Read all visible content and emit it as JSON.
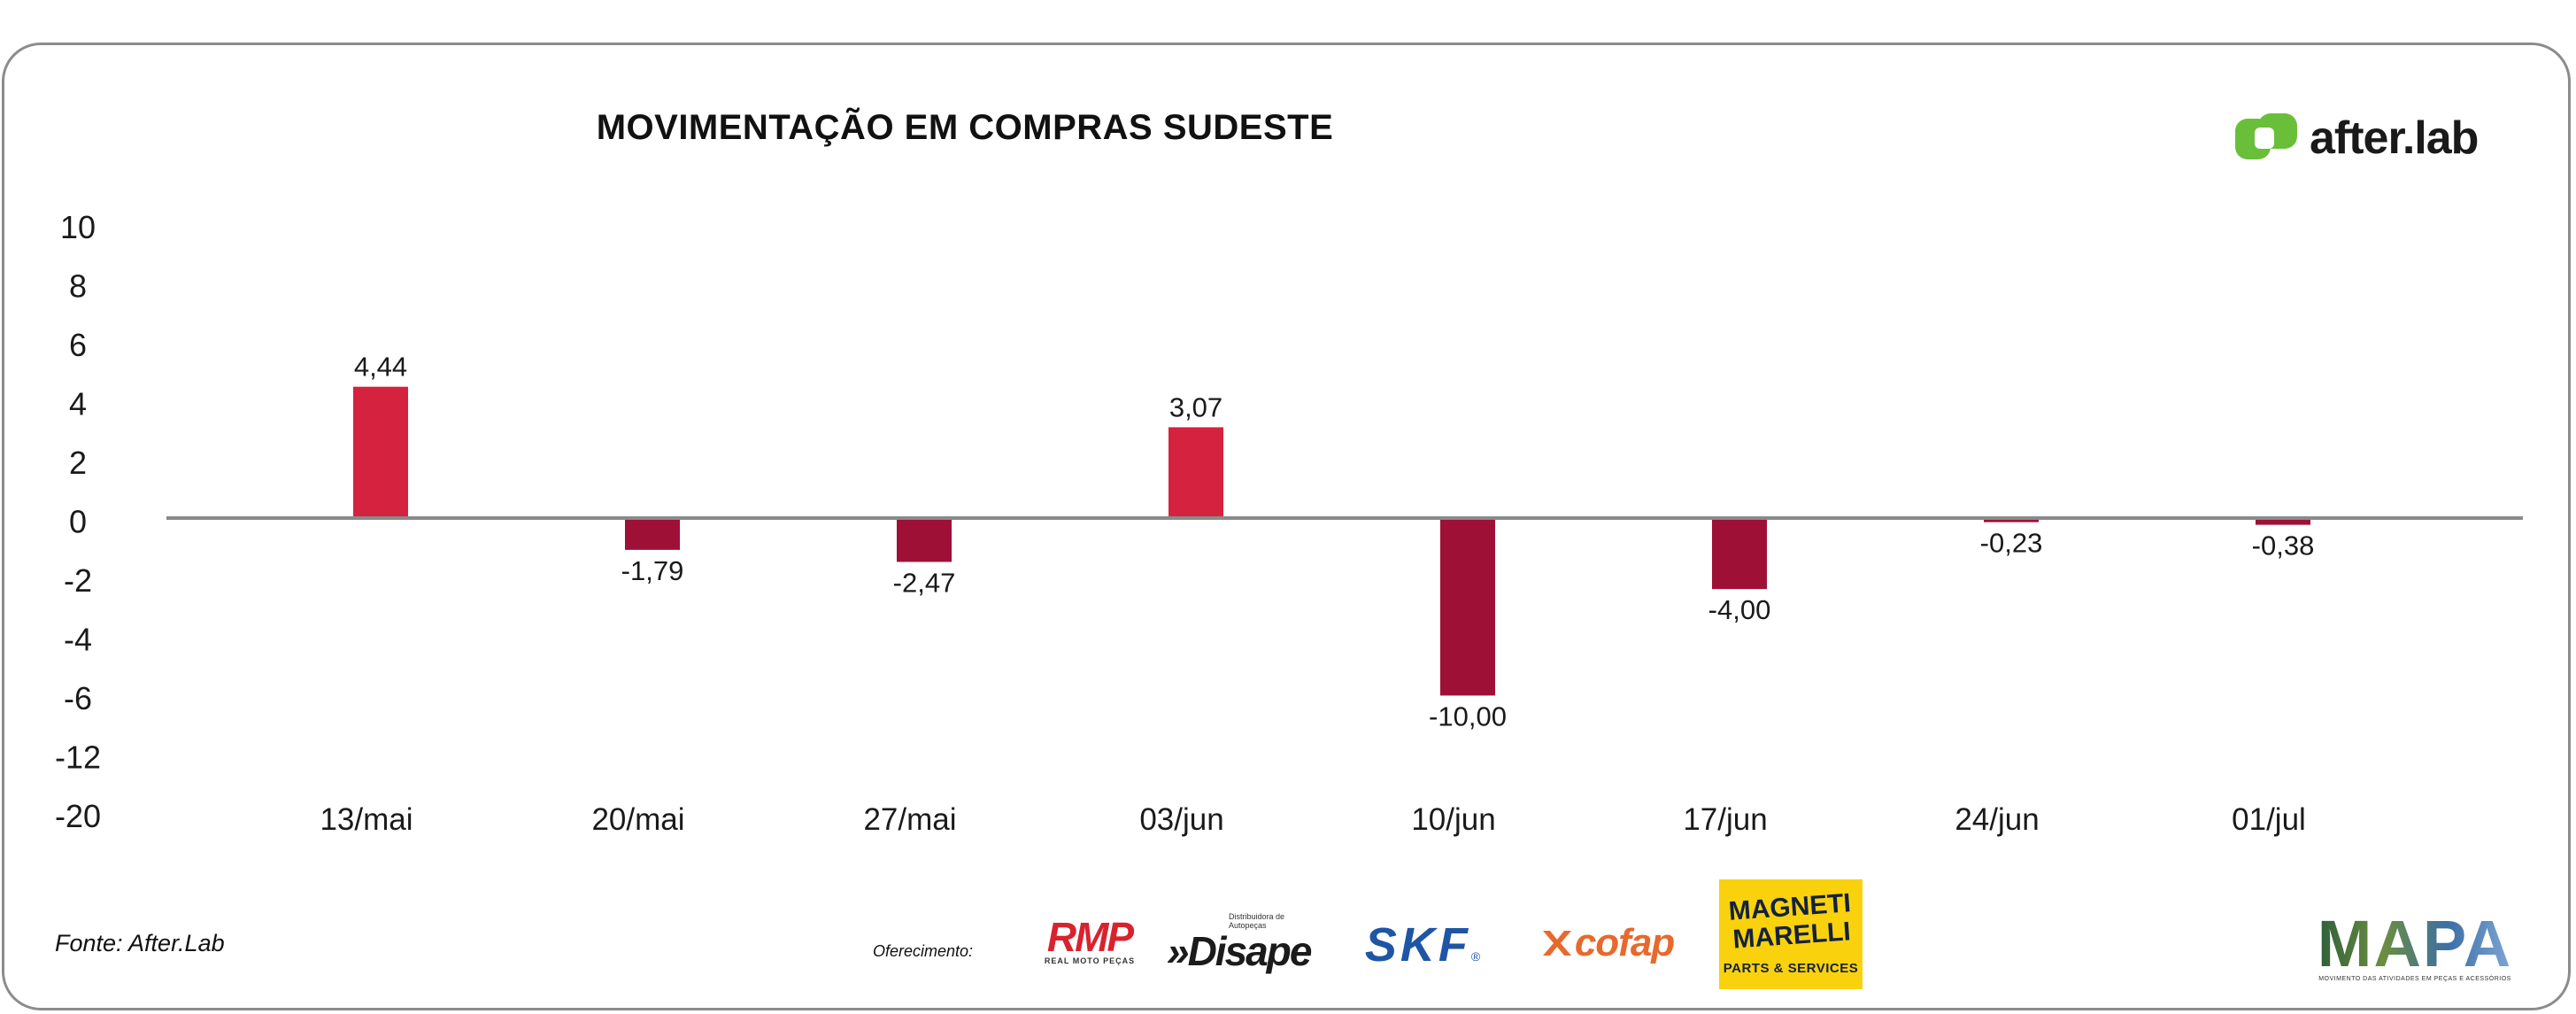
{
  "title": "MOVIMENTAÇÃO EM COMPRAS SUDESTE",
  "brand": {
    "name": "after.lab",
    "icon": "afterlab-logo-icon",
    "accent": "#6abf3a"
  },
  "source": "Fonte: After.Lab",
  "sponsors": {
    "label": "Oferecimento:",
    "rmp": {
      "name": "RMP",
      "tagline": "REAL MOTO PEÇAS"
    },
    "disape": {
      "name": "»Disape",
      "tagline": "Distribuidora de Autopeças"
    },
    "skf": {
      "name": "SKF",
      "mark": "®"
    },
    "cofap": {
      "name": "cofap"
    },
    "magneti": {
      "name": "MAGNETI MARELLI",
      "tagline": "PARTS & SERVICES"
    },
    "mapa": {
      "name": "MAPA",
      "tagline": "MOVIMENTO DAS ATIVIDADES EM PEÇAS E ACESSÓRIOS"
    }
  },
  "colors": {
    "positive": "#d5233f",
    "negative": "#9e1036",
    "axis": "#8a8a8a",
    "text": "#1a1a1a"
  },
  "chart_data": {
    "type": "bar",
    "title": "MOVIMENTAÇÃO EM COMPRAS SUDESTE",
    "categories": [
      "13/mai",
      "20/mai",
      "27/mai",
      "03/jun",
      "10/jun",
      "17/jun",
      "24/jun",
      "01/jul"
    ],
    "values": [
      4.44,
      -1.79,
      -2.47,
      3.07,
      -10.0,
      -4.0,
      -0.23,
      -0.38
    ],
    "data_labels": [
      "4,44",
      "-1,79",
      "-2,47",
      "3,07",
      "-10,00",
      "-4,00",
      "-0,23",
      "-0,38"
    ],
    "y_ticks": [
      "10",
      "8",
      "6",
      "4",
      "2",
      "0",
      "-2",
      "-4",
      "-6",
      "-12",
      "-20"
    ],
    "y_tick_values": [
      10,
      8,
      6,
      4,
      2,
      0,
      -2,
      -4,
      -6,
      -12,
      -20
    ],
    "grid": false,
    "legend": "none"
  }
}
